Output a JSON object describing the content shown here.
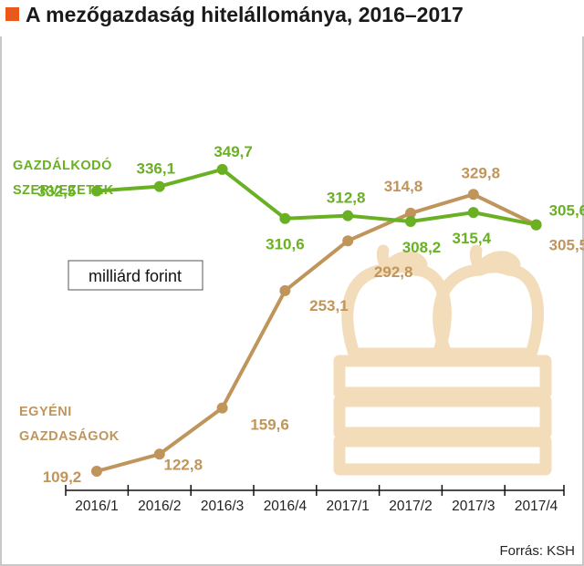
{
  "chart_data": {
    "type": "line",
    "title": "A mezőgazdaság hitelállománya, 2016–2017",
    "unit_label": "milliárd forint",
    "source": "Forrás: KSH",
    "categories": [
      "2016/1",
      "2016/2",
      "2016/3",
      "2016/4",
      "2017/1",
      "2017/2",
      "2017/3",
      "2017/4"
    ],
    "series": [
      {
        "name_lines": [
          "GAZDÁLKODÓ",
          "SZERVEZETEK"
        ],
        "color": "#6ab023",
        "values": [
          332.5,
          336.1,
          349.7,
          310.6,
          312.8,
          308.2,
          315.4,
          305.6
        ],
        "labels": [
          "332,5",
          "336,1",
          "349,7",
          "310,6",
          "312,8",
          "308,2",
          "315,4",
          "305,6"
        ]
      },
      {
        "name_lines": [
          "EGYÉNI",
          "GAZDASÁGOK"
        ],
        "color": "#c0955b",
        "values": [
          109.2,
          122.8,
          159.6,
          253.1,
          292.8,
          314.8,
          329.8,
          305.5
        ],
        "labels": [
          "109,2",
          "122,8",
          "159,6",
          "253,1",
          "292,8",
          "314,8",
          "329,8",
          "305,5"
        ]
      }
    ],
    "colors": {
      "accent": "#e85a1b",
      "illustration": "#f3dcb9",
      "frame": "#c8c8c8"
    },
    "icon": "apple-crate-icon"
  }
}
